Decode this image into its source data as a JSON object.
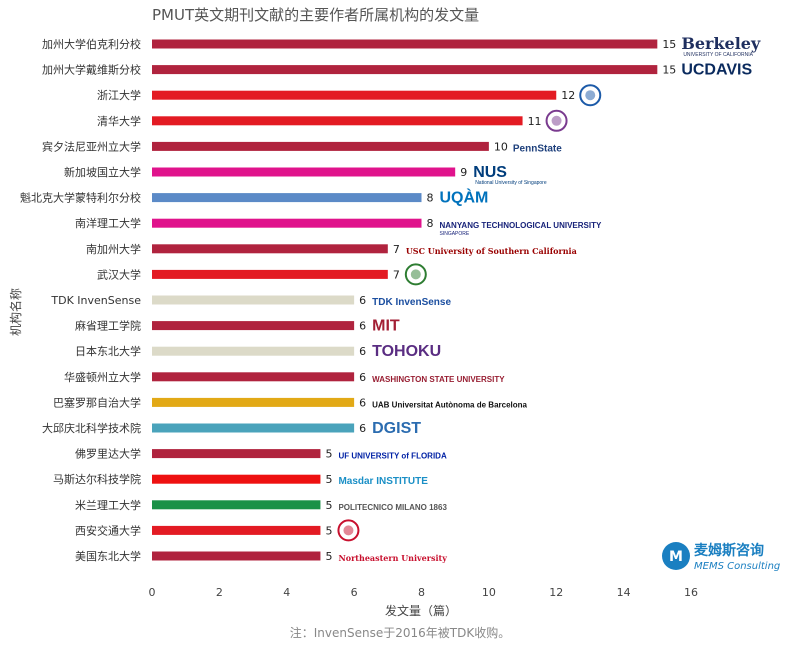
{
  "chart_data": {
    "type": "bar",
    "orientation": "horizontal",
    "title": "PMUT英文期刊文献的主要作者所属机构的发文量",
    "xlabel": "发文量（篇）",
    "ylabel": "机构名称",
    "xlim": [
      0,
      16
    ],
    "xticks": [
      0,
      2,
      4,
      6,
      8,
      10,
      12,
      14,
      16
    ],
    "grid": false,
    "categories": [
      "加州大学伯克利分校",
      "加州大学戴维斯分校",
      "浙江大学",
      "清华大学",
      "宾夕法尼亚州立大学",
      "新加坡国立大学",
      "魁北克大学蒙特利尔分校",
      "南洋理工大学",
      "南加州大学",
      "武汉大学",
      "TDK InvenSense",
      "麻省理工学院",
      "日本东北大学",
      "华盛顿州立大学",
      "巴塞罗那自治大学",
      "大邱庆北科学技术院",
      "佛罗里达大学",
      "马斯达尔科技学院",
      "米兰理工大学",
      "西安交通大学",
      "美国东北大学"
    ],
    "values": [
      15,
      15,
      12,
      11,
      10,
      9,
      8,
      8,
      7,
      7,
      6,
      6,
      6,
      6,
      6,
      6,
      5,
      5,
      5,
      5,
      5
    ],
    "colors": [
      "#b0233e",
      "#b0233e",
      "#e31b23",
      "#e31b23",
      "#b0233e",
      "#e0138c",
      "#5b8ac7",
      "#e0138c",
      "#b0233e",
      "#e31b23",
      "#dcdac8",
      "#b0233e",
      "#dcdac8",
      "#b0233e",
      "#e2a916",
      "#4aa3bb",
      "#b0233e",
      "#ee1111",
      "#1a9147",
      "#e31b23",
      "#b0233e"
    ]
  },
  "logos": [
    {
      "text": "Berkeley",
      "sub": "UNIVERSITY OF CALIFORNIA",
      "color": "#1f2f5f"
    },
    {
      "text": "UCDAVIS",
      "color": "#0a2a5e"
    },
    {
      "text": "",
      "color": "#1c5aa8"
    },
    {
      "text": "",
      "color": "#7a3b8f"
    },
    {
      "text": "PennState",
      "color": "#1e407c"
    },
    {
      "text": "NUS",
      "sub": "National University of Singapore",
      "color": "#003d7c"
    },
    {
      "text": "UQÀM",
      "color": "#0072bc"
    },
    {
      "text": "NANYANG TECHNOLOGICAL UNIVERSITY",
      "sub": "SINGAPORE",
      "color": "#18237a"
    },
    {
      "text": "USC University of Southern California",
      "color": "#990000"
    },
    {
      "text": "",
      "color": "#2e7d32"
    },
    {
      "text": "TDK InvenSense",
      "color": "#1c4fa0"
    },
    {
      "text": "MIT",
      "color": "#a31f34"
    },
    {
      "text": "TOHOKU",
      "color": "#5a2d82"
    },
    {
      "text": "WASHINGTON STATE UNIVERSITY",
      "color": "#981e32"
    },
    {
      "text": "UAB Universitat Autònoma de Barcelona",
      "color": "#111111"
    },
    {
      "text": "DGIST",
      "color": "#2b6cb0"
    },
    {
      "text": "UF UNIVERSITY of FLORIDA",
      "color": "#0021a5"
    },
    {
      "text": "Masdar INSTITUTE",
      "color": "#1a8fc6"
    },
    {
      "text": "POLITECNICO MILANO 1863",
      "color": "#555555"
    },
    {
      "text": "",
      "color": "#c8102e"
    },
    {
      "text": "Northeastern University",
      "color": "#c8102e"
    }
  ],
  "watermark": {
    "cn": "麦姆斯咨询",
    "en": "MEMS Consulting",
    "color": "#1a7fc1"
  },
  "note": "注：InvenSense于2016年被TDK收购。"
}
